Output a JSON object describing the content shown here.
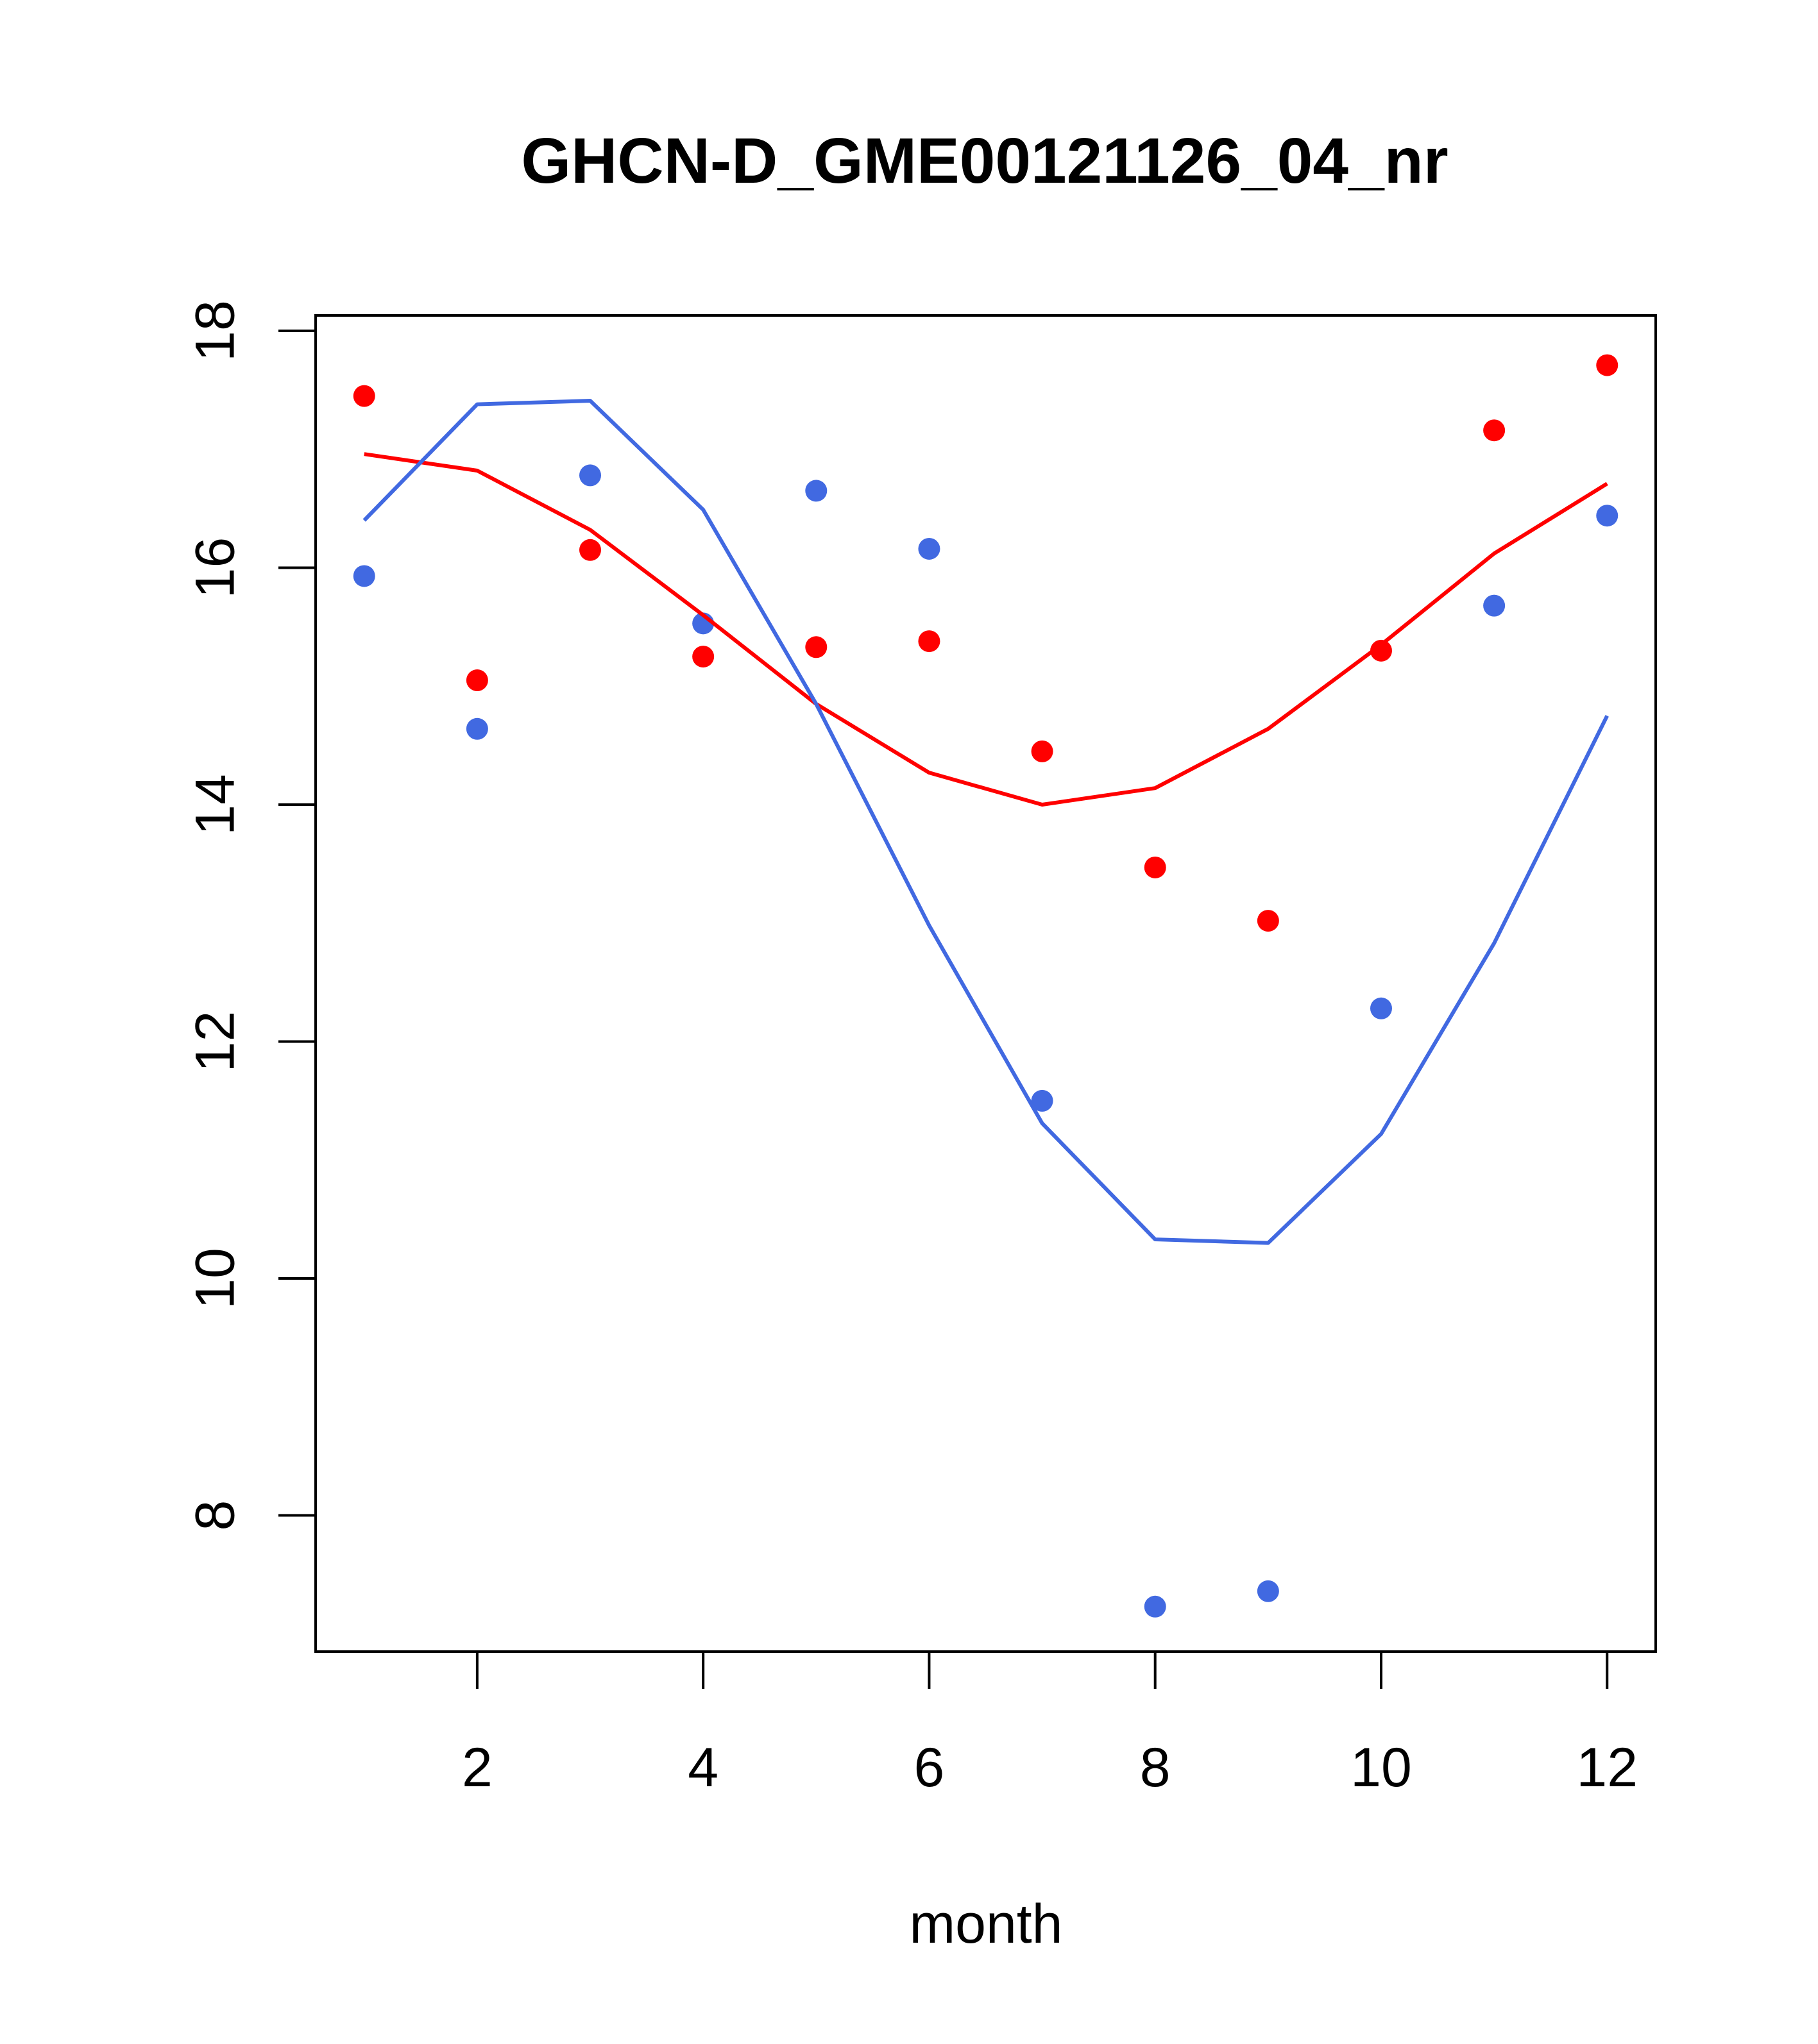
{
  "chart_data": {
    "type": "scatter",
    "title": "GHCN-D_GME00121126_04_nr",
    "xlabel": "month",
    "ylabel": "",
    "xlim": [
      0.57,
      12.43
    ],
    "ylim": [
      6.85,
      18.13
    ],
    "xticks": [
      2,
      4,
      6,
      8,
      10,
      12
    ],
    "yticks": [
      8,
      10,
      12,
      14,
      16,
      18
    ],
    "grid": false,
    "legend": "none",
    "series": [
      {
        "name": "red points",
        "kind": "points",
        "color": "#ff0000",
        "x": [
          1,
          2,
          3,
          4,
          5,
          6,
          7,
          8,
          9,
          10,
          11,
          12
        ],
        "y": [
          17.45,
          15.05,
          16.15,
          15.25,
          15.33,
          15.38,
          14.45,
          13.47,
          13.02,
          15.3,
          17.16,
          17.71
        ]
      },
      {
        "name": "blue points",
        "kind": "points",
        "color": "#4169e1",
        "x": [
          1,
          2,
          3,
          4,
          5,
          6,
          7,
          8,
          9,
          10,
          11,
          12
        ],
        "y": [
          15.93,
          14.64,
          16.78,
          15.53,
          16.65,
          16.16,
          11.5,
          7.23,
          7.36,
          12.28,
          15.68,
          16.44
        ]
      },
      {
        "name": "red line",
        "kind": "line",
        "color": "#ff0000",
        "x": [
          1,
          2,
          3,
          4,
          5,
          6,
          7,
          8,
          9,
          10,
          11,
          12
        ],
        "y": [
          16.96,
          16.82,
          16.32,
          15.6,
          14.85,
          14.27,
          14.0,
          14.14,
          14.64,
          15.35,
          16.12,
          16.71
        ]
      },
      {
        "name": "blue line",
        "kind": "line",
        "color": "#4169e1",
        "x": [
          1,
          2,
          3,
          4,
          5,
          6,
          7,
          8,
          9,
          10,
          11,
          12
        ],
        "y": [
          16.4,
          17.38,
          17.41,
          16.49,
          14.85,
          12.98,
          11.31,
          10.33,
          10.3,
          11.22,
          12.83,
          14.75
        ]
      }
    ]
  }
}
